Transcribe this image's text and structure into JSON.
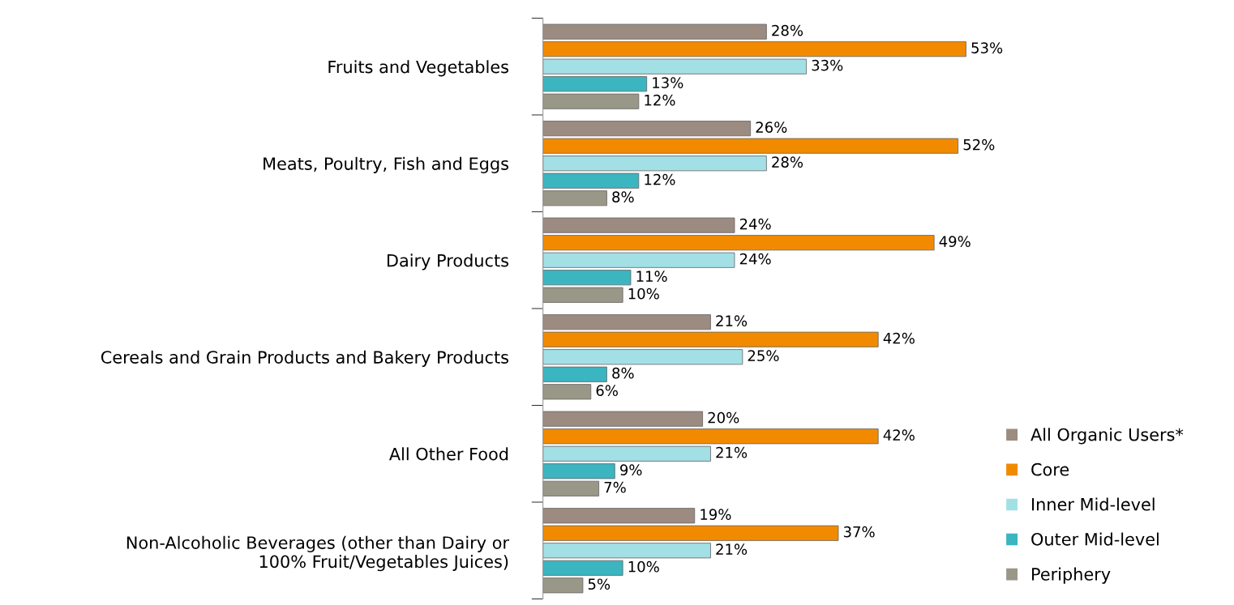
{
  "chart_data": {
    "type": "bar",
    "orientation": "horizontal",
    "categories": [
      "Fruits and Vegetables",
      "Meats, Poultry, Fish and Eggs",
      "Dairy Products",
      "Cereals and Grain Products and Bakery Products",
      "All Other Food",
      "Non-Alcoholic Beverages (other than Dairy or\n100% Fruit/Vegetables Juices)"
    ],
    "series": [
      {
        "name": "All Organic Users*",
        "color": "#9c8b80",
        "values": [
          28,
          26,
          24,
          21,
          20,
          19
        ],
        "value_labels": [
          "28%",
          "26%",
          "24%",
          "21%",
          "20%",
          "19%"
        ]
      },
      {
        "name": "Core",
        "color": "#f28a00",
        "values": [
          53,
          52,
          49,
          42,
          42,
          37
        ],
        "value_labels": [
          "53%",
          "52%",
          "49%",
          "42%",
          "42%",
          "37%"
        ]
      },
      {
        "name": "Inner Mid-level",
        "color": "#a3e0e6",
        "values": [
          33,
          28,
          24,
          25,
          21,
          21
        ],
        "value_labels": [
          "33%",
          "28%",
          "24%",
          "25%",
          "21%",
          "21%"
        ]
      },
      {
        "name": "Outer Mid-level",
        "color": "#3bb5c0",
        "values": [
          13,
          12,
          11,
          8,
          9,
          10
        ],
        "value_labels": [
          "13%",
          "12%",
          "11%",
          "8%",
          "9%",
          "10%"
        ]
      },
      {
        "name": "Periphery",
        "color": "#999888",
        "values": [
          12,
          8,
          10,
          6,
          7,
          5
        ],
        "value_labels": [
          "12%",
          "8%",
          "10%",
          "6%",
          "7%",
          "5%"
        ]
      }
    ],
    "legend": "right",
    "grid": false
  }
}
